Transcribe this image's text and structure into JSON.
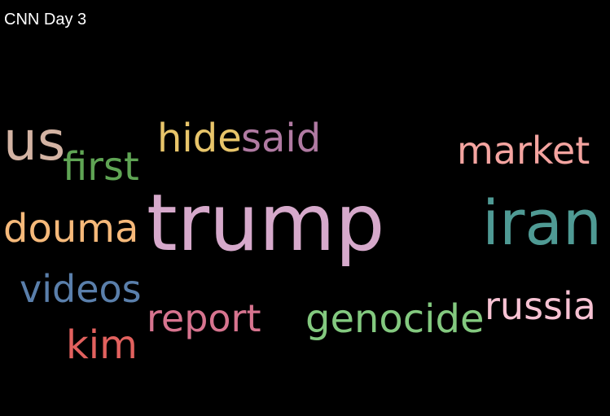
{
  "title": "CNN Day 3",
  "words": [
    {
      "text": "trump",
      "color": "#d6a9cb"
    },
    {
      "text": "iran",
      "color": "#4f9a94"
    },
    {
      "text": "us",
      "color": "#d3b3a3"
    },
    {
      "text": "hide",
      "color": "#e8c56a"
    },
    {
      "text": "said",
      "color": "#b07aa2"
    },
    {
      "text": "market",
      "color": "#f4a4a0"
    },
    {
      "text": "first",
      "color": "#5fa454"
    },
    {
      "text": "douma",
      "color": "#f6b97a"
    },
    {
      "text": "videos",
      "color": "#5a7fab"
    },
    {
      "text": "report",
      "color": "#d7748f"
    },
    {
      "text": "genocide",
      "color": "#83c97f"
    },
    {
      "text": "russia",
      "color": "#f7c2d3"
    },
    {
      "text": "kim",
      "color": "#e2615e"
    }
  ]
}
